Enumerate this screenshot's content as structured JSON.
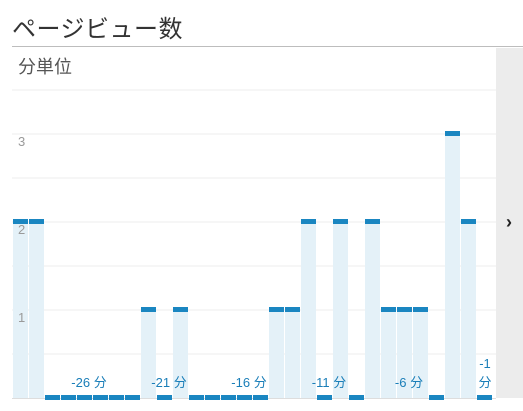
{
  "widget": {
    "title": "ページビュー数",
    "unit_label": "分単位"
  },
  "navigation": {
    "next_icon": "chevron-right-icon",
    "next_glyph": "›"
  },
  "colors": {
    "bar_fill": "#e4f1f8",
    "bar_cap": "#1a86c1",
    "tick_label": "#1a7eb8",
    "y_label": "#9a9a9a",
    "grid": "#ececec",
    "side_panel": "#ececec"
  },
  "chart_data": {
    "type": "bar",
    "title": "",
    "xlabel": "",
    "ylabel": "",
    "unit": "分単位",
    "grid": true,
    "ylim": [
      0,
      4
    ],
    "yticks": [
      "1",
      "2",
      "3"
    ],
    "ytick_values": [
      1,
      2,
      3
    ],
    "categories": [
      -30,
      -29,
      -28,
      -27,
      -26,
      -25,
      -24,
      -23,
      -22,
      -21,
      -20,
      -19,
      -18,
      -17,
      -16,
      -15,
      -14,
      -13,
      -12,
      -11,
      -10,
      -9,
      -8,
      -7,
      -6,
      -5,
      -4,
      -3,
      -2,
      -1
    ],
    "values": [
      2,
      2,
      0,
      0,
      0,
      0,
      0,
      0,
      1,
      0,
      1,
      0,
      0,
      0,
      0,
      0,
      1,
      1,
      2,
      0,
      2,
      0,
      2,
      1,
      1,
      1,
      0,
      3,
      2,
      0
    ],
    "xtick_labels": [
      "-26 分",
      "-21 分",
      "-16 分",
      "-11 分",
      "-6 分"
    ],
    "xtick_values": [
      -26,
      -21,
      -16,
      -11,
      -6
    ],
    "last_tick": {
      "value": -1,
      "lines": [
        "-1",
        "分"
      ]
    }
  }
}
